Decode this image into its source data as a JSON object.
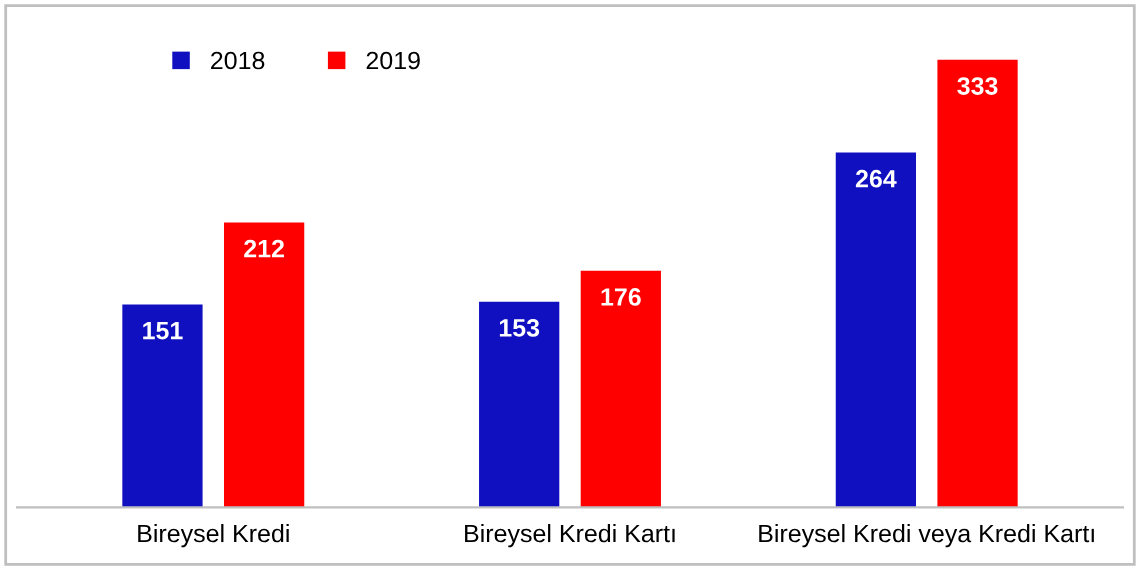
{
  "chart_data": {
    "type": "bar",
    "categories": [
      "Bireysel Kredi",
      "Bireysel Kredi Kartı",
      "Bireysel Kredi veya Kredi Kartı"
    ],
    "series": [
      {
        "name": "2018",
        "color": "#1010c0",
        "values": [
          151,
          153,
          264
        ]
      },
      {
        "name": "2019",
        "color": "#ff0000",
        "values": [
          212,
          176,
          333
        ]
      }
    ],
    "data_labels": true,
    "legend": "top left",
    "grid": false
  }
}
